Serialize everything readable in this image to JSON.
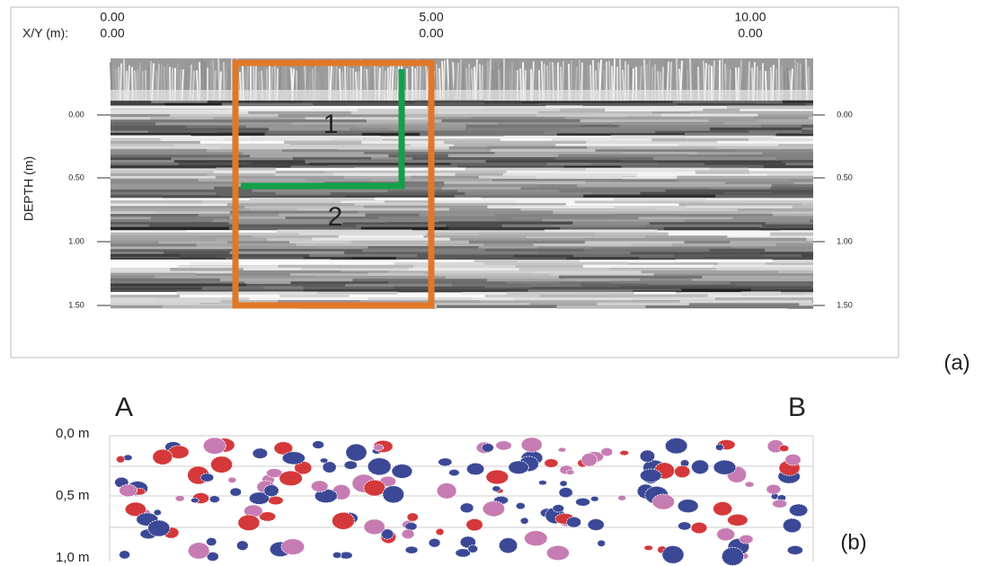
{
  "panel_a": {
    "x_axis": {
      "label": "X/Y (m):",
      "ticks": [
        {
          "x": "0.00",
          "y": "0.00"
        },
        {
          "x": "5.00",
          "y": "0.00"
        },
        {
          "x": "10.00",
          "y": "0.00"
        }
      ]
    },
    "y_axis": {
      "label": "DEPTH (m)",
      "left_ticks": [
        "0.00",
        "0.50",
        "1.00",
        "1.50"
      ],
      "right_ticks": [
        "0.00",
        "0.50",
        "1.00",
        "1.50"
      ]
    },
    "zones": [
      "1",
      "2"
    ],
    "panel_label": "(a)"
  },
  "panel_b": {
    "start": "A",
    "end": "B",
    "depth_labels": [
      "0,0 m",
      "0,5 m",
      "1,0 m"
    ],
    "panel_label": "(b)"
  }
}
